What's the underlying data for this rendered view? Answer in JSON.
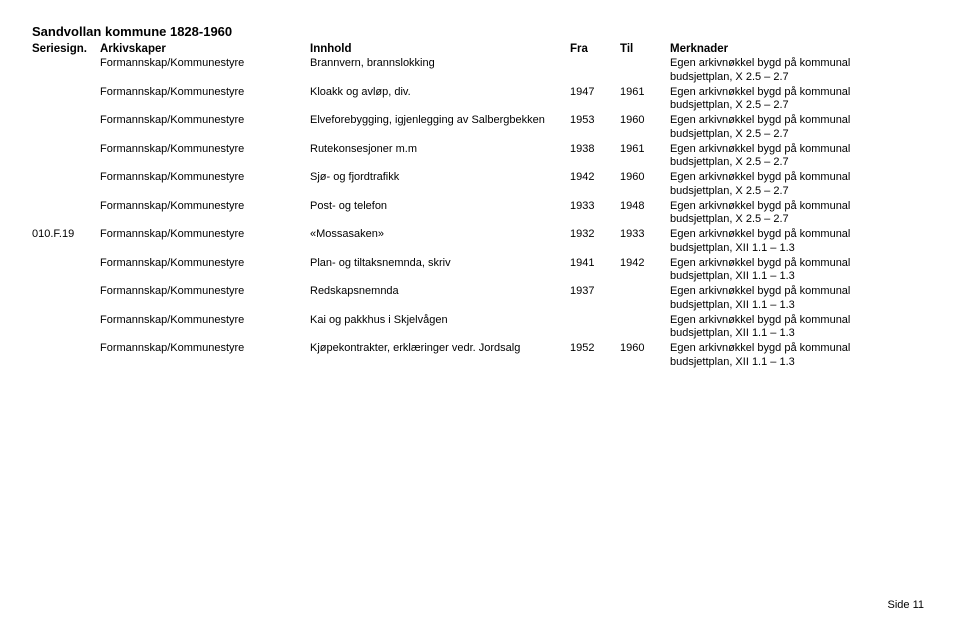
{
  "title": "Sandvollan kommune 1828-1960",
  "columns": {
    "seriesign": "Seriesign.",
    "arkivskaper": "Arkivskaper",
    "innhold": "Innhold",
    "fra": "Fra",
    "til": "Til",
    "merknader": "Merknader"
  },
  "rows": [
    {
      "seriesign": "",
      "arkivskaper": "Formannskap/Kommunestyre",
      "innhold": "Brannvern, brannslokking",
      "fra": "",
      "til": "",
      "merknader": "Egen arkivnøkkel bygd på kommunal budsjettplan, X 2.5 – 2.7"
    },
    {
      "seriesign": "",
      "arkivskaper": "Formannskap/Kommunestyre",
      "innhold": "Kloakk og avløp, div.",
      "fra": "1947",
      "til": "1961",
      "merknader": "Egen arkivnøkkel bygd på kommunal budsjettplan, X 2.5 – 2.7"
    },
    {
      "seriesign": "",
      "arkivskaper": "Formannskap/Kommunestyre",
      "innhold": "Elveforebygging, igjenlegging av Salbergbekken",
      "fra": "1953",
      "til": "1960",
      "merknader": "Egen arkivnøkkel bygd på kommunal budsjettplan, X 2.5 – 2.7"
    },
    {
      "seriesign": "",
      "arkivskaper": "Formannskap/Kommunestyre",
      "innhold": "Rutekonsesjoner m.m",
      "fra": "1938",
      "til": "1961",
      "merknader": "Egen arkivnøkkel bygd på kommunal budsjettplan, X 2.5 – 2.7"
    },
    {
      "seriesign": "",
      "arkivskaper": "Formannskap/Kommunestyre",
      "innhold": "Sjø- og fjordtrafikk",
      "fra": "1942",
      "til": "1960",
      "merknader": "Egen arkivnøkkel bygd på kommunal budsjettplan, X 2.5 – 2.7"
    },
    {
      "seriesign": "",
      "arkivskaper": "Formannskap/Kommunestyre",
      "innhold": "Post- og telefon",
      "fra": "1933",
      "til": "1948",
      "merknader": "Egen arkivnøkkel bygd på kommunal budsjettplan, X 2.5 – 2.7"
    },
    {
      "seriesign": "010.F.19",
      "arkivskaper": "Formannskap/Kommunestyre",
      "innhold": "«Mossasaken»",
      "fra": "1932",
      "til": "1933",
      "merknader": "Egen arkivnøkkel bygd på kommunal budsjettplan, XII 1.1 – 1.3"
    },
    {
      "seriesign": "",
      "arkivskaper": "Formannskap/Kommunestyre",
      "innhold": "Plan- og tiltaksnemnda, skriv",
      "fra": "1941",
      "til": "1942",
      "merknader": "Egen arkivnøkkel bygd på kommunal budsjettplan, XII 1.1 – 1.3"
    },
    {
      "seriesign": "",
      "arkivskaper": "Formannskap/Kommunestyre",
      "innhold": "Redskapsnemnda",
      "fra": "1937",
      "til": "",
      "merknader": "Egen arkivnøkkel bygd på kommunal budsjettplan, XII 1.1 – 1.3"
    },
    {
      "seriesign": "",
      "arkivskaper": "Formannskap/Kommunestyre",
      "innhold": "Kai og pakkhus i Skjelvågen",
      "fra": "",
      "til": "",
      "merknader": "Egen arkivnøkkel bygd på kommunal budsjettplan, XII 1.1 – 1.3"
    },
    {
      "seriesign": "",
      "arkivskaper": "Formannskap/Kommunestyre",
      "innhold": "Kjøpekontrakter, erklæringer vedr. Jordsalg",
      "fra": "1952",
      "til": "1960",
      "merknader": "Egen arkivnøkkel bygd på kommunal budsjettplan, XII 1.1 – 1.3"
    }
  ],
  "footer": "Side 11"
}
